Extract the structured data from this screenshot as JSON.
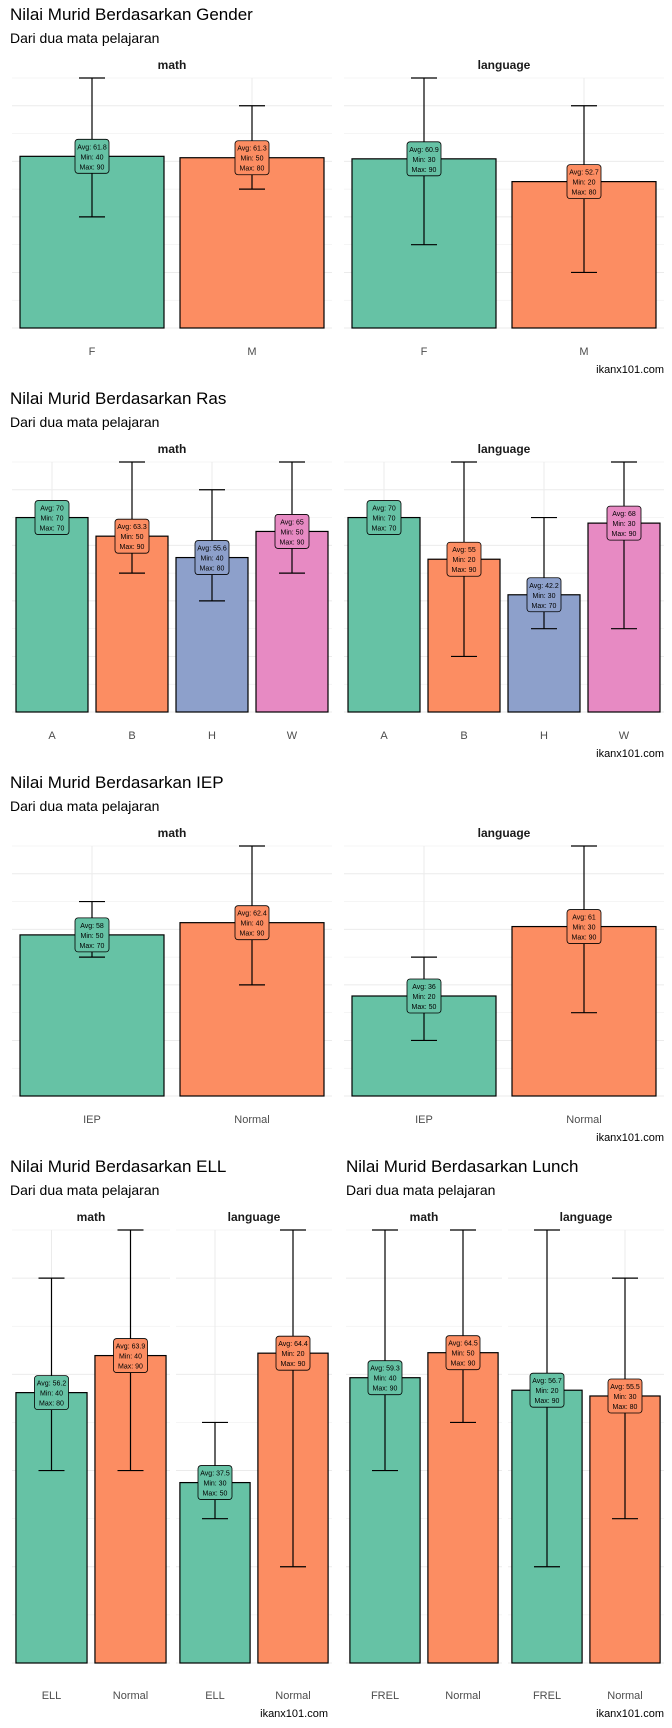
{
  "caption": "ikanx101.com",
  "chart_data": [
    {
      "type": "bar",
      "title": "Nilai Murid Berdasarkan Gender",
      "subtitle": "Dari dua mata pelajaran",
      "ylim": [
        0,
        90
      ],
      "grid": true,
      "error_bars": "min-max",
      "label_prefix": {
        "avg": "Avg: ",
        "min": "Min: ",
        "max": "Max: "
      },
      "panels": [
        {
          "name": "math",
          "categories": [
            "F",
            "M"
          ],
          "avg": [
            61.8,
            61.3
          ],
          "min": [
            40,
            50
          ],
          "max": [
            90,
            80
          ]
        },
        {
          "name": "language",
          "categories": [
            "F",
            "M"
          ],
          "avg": [
            60.9,
            52.7
          ],
          "min": [
            30,
            20
          ],
          "max": [
            90,
            80
          ]
        }
      ]
    },
    {
      "type": "bar",
      "title": "Nilai Murid Berdasarkan Ras",
      "subtitle": "Dari dua mata pelajaran",
      "ylim": [
        0,
        90
      ],
      "grid": true,
      "error_bars": "min-max",
      "label_prefix": {
        "avg": "Avg: ",
        "min": "Min: ",
        "max": "Max: "
      },
      "panels": [
        {
          "name": "math",
          "categories": [
            "A",
            "B",
            "H",
            "W"
          ],
          "avg": [
            70,
            63.3,
            55.6,
            65
          ],
          "min": [
            70,
            50,
            40,
            50
          ],
          "max": [
            70,
            90,
            80,
            90
          ]
        },
        {
          "name": "language",
          "categories": [
            "A",
            "B",
            "H",
            "W"
          ],
          "avg": [
            70,
            55,
            42.2,
            68
          ],
          "min": [
            70,
            20,
            30,
            30
          ],
          "max": [
            70,
            90,
            70,
            90
          ]
        }
      ]
    },
    {
      "type": "bar",
      "title": "Nilai Murid Berdasarkan IEP",
      "subtitle": "Dari dua mata pelajaran",
      "ylim": [
        0,
        90
      ],
      "grid": true,
      "error_bars": "min-max",
      "label_prefix": {
        "avg": "Avg: ",
        "min": "Min: ",
        "max": "Max: "
      },
      "panels": [
        {
          "name": "math",
          "categories": [
            "IEP",
            "Normal"
          ],
          "avg": [
            58,
            62.4
          ],
          "min": [
            50,
            40
          ],
          "max": [
            70,
            90
          ]
        },
        {
          "name": "language",
          "categories": [
            "IEP",
            "Normal"
          ],
          "avg": [
            36,
            61
          ],
          "min": [
            20,
            30
          ],
          "max": [
            50,
            90
          ]
        }
      ]
    },
    {
      "type": "bar",
      "title": "Nilai Murid Berdasarkan ELL",
      "subtitle": "Dari dua mata pelajaran",
      "ylim": [
        0,
        90
      ],
      "grid": true,
      "error_bars": "min-max",
      "label_prefix": {
        "avg": "Avg: ",
        "min": "Min: ",
        "max": "Max: "
      },
      "panels": [
        {
          "name": "math",
          "categories": [
            "ELL",
            "Normal"
          ],
          "avg": [
            56.2,
            63.9
          ],
          "min": [
            40,
            40
          ],
          "max": [
            80,
            90
          ]
        },
        {
          "name": "language",
          "categories": [
            "ELL",
            "Normal"
          ],
          "avg": [
            37.5,
            64.4
          ],
          "min": [
            30,
            20
          ],
          "max": [
            50,
            90
          ]
        }
      ]
    },
    {
      "type": "bar",
      "title": "Nilai Murid Berdasarkan Lunch",
      "subtitle": "Dari dua mata pelajaran",
      "ylim": [
        0,
        90
      ],
      "grid": true,
      "error_bars": "min-max",
      "label_prefix": {
        "avg": "Avg: ",
        "min": "Min: ",
        "max": "Max: "
      },
      "panels": [
        {
          "name": "math",
          "categories": [
            "FREL",
            "Normal"
          ],
          "avg": [
            59.3,
            64.5
          ],
          "min": [
            40,
            50
          ],
          "max": [
            90,
            90
          ]
        },
        {
          "name": "language",
          "categories": [
            "FREL",
            "Normal"
          ],
          "avg": [
            56.7,
            55.5
          ],
          "min": [
            20,
            30
          ],
          "max": [
            90,
            80
          ]
        }
      ]
    }
  ],
  "colors": {
    "palette": [
      "#66c2a5",
      "#fc8d62",
      "#8da0cb",
      "#e78ac3"
    ],
    "grid": "#ebebeb",
    "bar_outline": "#000000"
  }
}
